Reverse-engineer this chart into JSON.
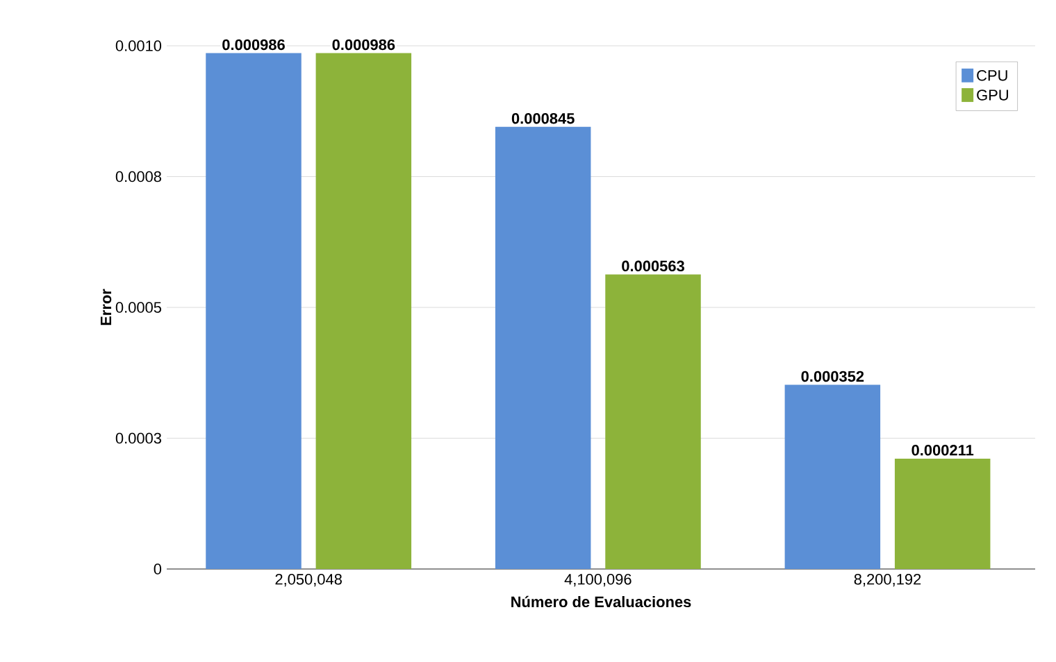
{
  "chart_data": {
    "type": "bar",
    "xlabel": "Número de Evaluaciones",
    "ylabel": "Error",
    "categories": [
      "2,050,048",
      "4,100,096",
      "8,200,192"
    ],
    "series": [
      {
        "name": "CPU",
        "color": "#5b8fd6",
        "values": [
          0.000986,
          0.000845,
          0.000352
        ]
      },
      {
        "name": "GPU",
        "color": "#8db33a",
        "values": [
          0.000986,
          0.000563,
          0.000211
        ]
      }
    ],
    "ylim": [
      0,
      0.001
    ],
    "yticks": [
      0,
      {
        "value": 0.00025,
        "label": "0.0003"
      },
      {
        "value": 0.0005,
        "label": "0.0005"
      },
      {
        "value": 0.00075,
        "label": "0.0008"
      },
      {
        "value": 0.001,
        "label": "0.0010"
      }
    ],
    "grid": "y",
    "legend": "top right",
    "data_labels": true
  }
}
